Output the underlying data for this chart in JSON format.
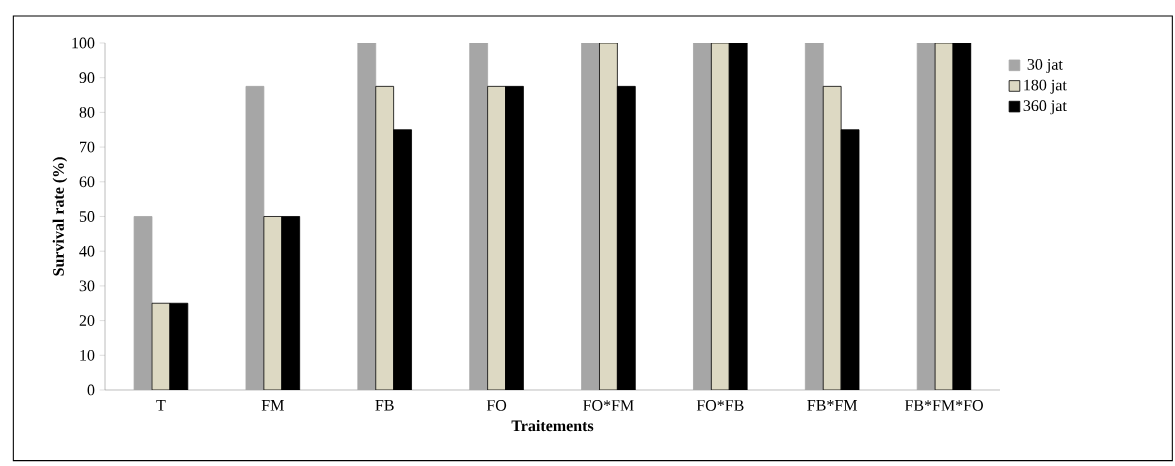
{
  "chart_data": {
    "type": "bar",
    "xlabel": "Traitements",
    "ylabel": "Survival rate (%)",
    "categories": [
      "T",
      "FM",
      "FB",
      "FO",
      "FO*FM",
      "FO*FB",
      "FB*FM",
      "FB*FM*FO"
    ],
    "series": [
      {
        "name": "30 jat",
        "color": "#a6a6a6",
        "values": [
          50,
          87.5,
          100,
          100,
          100,
          100,
          100,
          100
        ]
      },
      {
        "name": "180 jat",
        "color": "#ddd9c3",
        "values": [
          25,
          50,
          87.5,
          87.5,
          100,
          100,
          87.5,
          100
        ]
      },
      {
        "name": "360 jat",
        "color": "#000000",
        "values": [
          25,
          50,
          75,
          87.5,
          87.5,
          100,
          75,
          100
        ]
      }
    ],
    "ylim": [
      0,
      100
    ],
    "yticks": [
      0,
      10,
      20,
      30,
      40,
      50,
      60,
      70,
      80,
      90,
      100
    ],
    "grid": false,
    "legend": "right"
  }
}
